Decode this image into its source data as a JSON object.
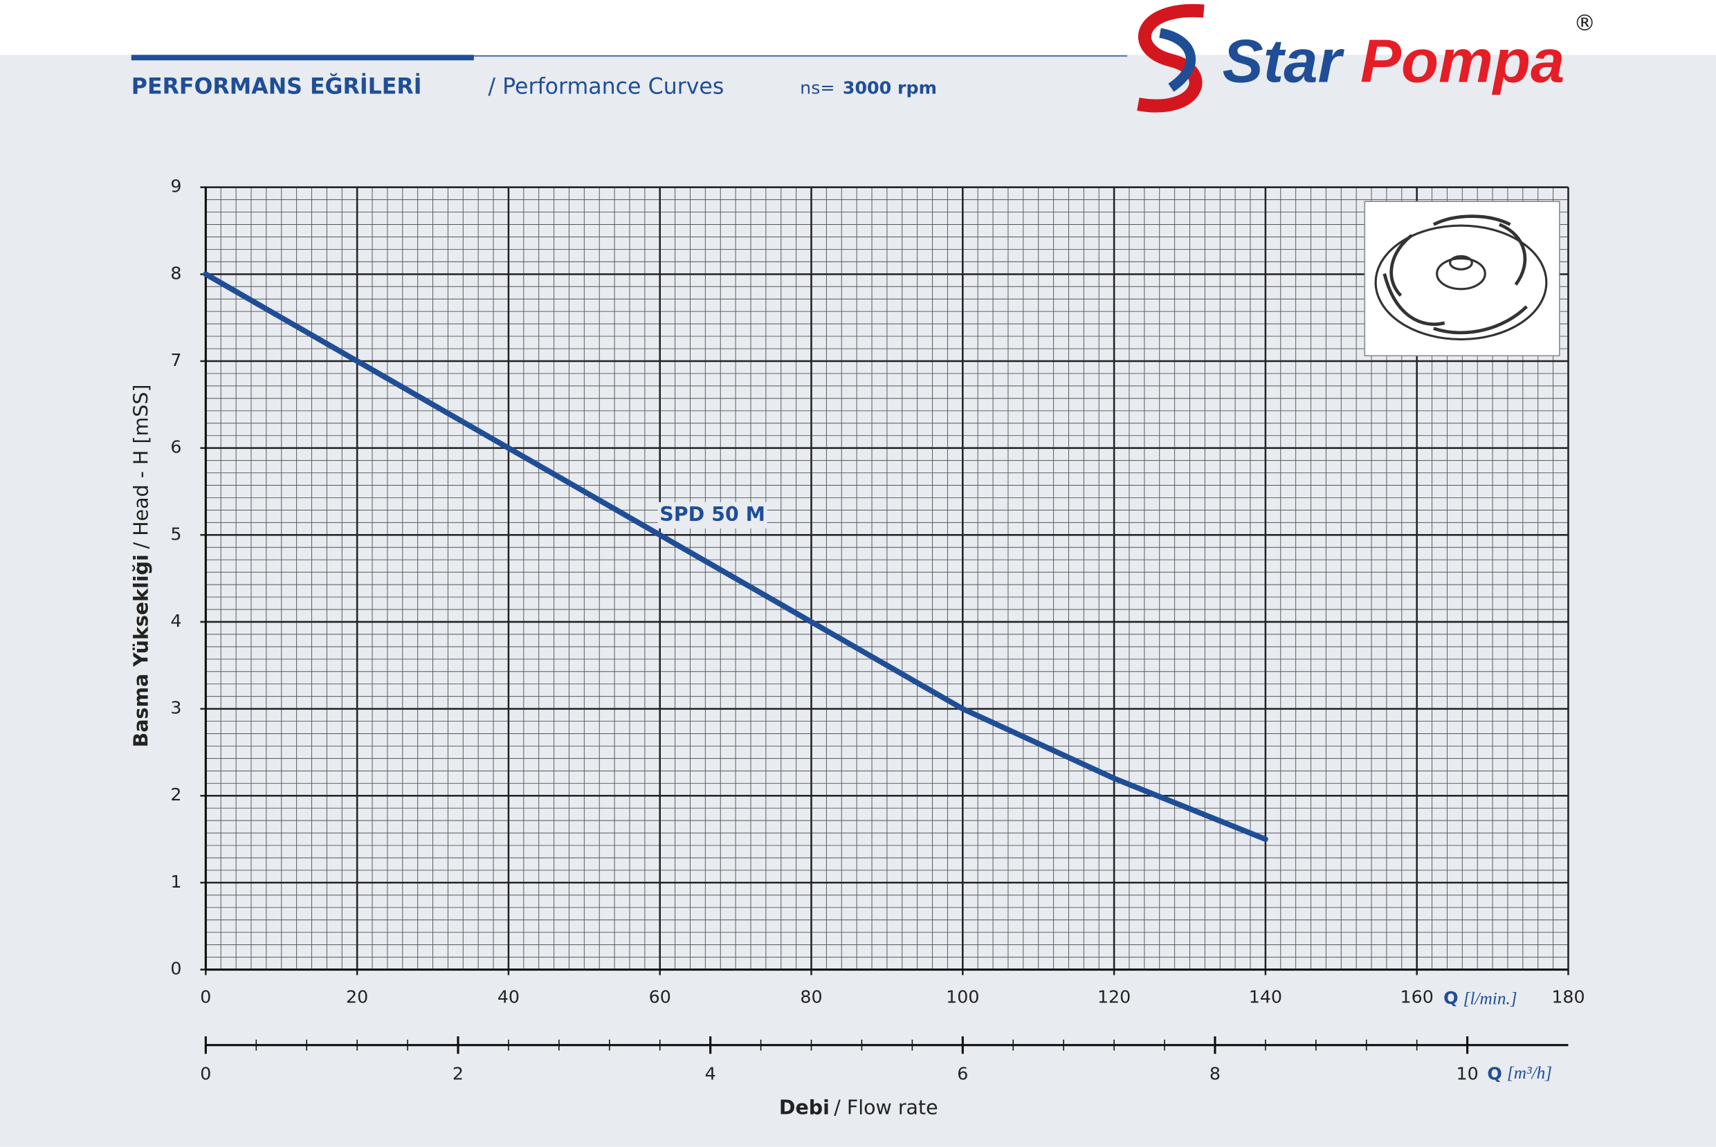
{
  "header": {
    "title": "PERFORMANS EĞRİLERİ",
    "subtitle": "/ Performance Curves",
    "speed_label": "ns=",
    "speed": "3000 rpm"
  },
  "brand": {
    "first": "Star",
    "second": "Pompa",
    "mark": "®"
  },
  "chart_data": {
    "type": "line",
    "x_label_bold": "Debi",
    "x_label": "/ Flow rate",
    "y_label_bold": "Basma Yüksekliği",
    "y_label": "/ Head - H [mSS]",
    "x_unit_symbol": "Q",
    "x_unit": "[l/min.]",
    "xlim": [
      0,
      180
    ],
    "xticks": [
      0,
      20,
      40,
      60,
      80,
      100,
      120,
      140,
      160,
      180
    ],
    "ylim": [
      0,
      9
    ],
    "yticks": [
      0,
      1,
      2,
      3,
      4,
      5,
      6,
      7,
      8,
      9
    ],
    "x2_unit_symbol": "Q",
    "x2_unit": "[m³/h]",
    "x2lim": [
      0,
      10.8
    ],
    "x2ticks": [
      0,
      2,
      4,
      6,
      8,
      10
    ],
    "grid": true,
    "series": [
      {
        "name": "SPD 50 M",
        "color": "#1f4e96",
        "x": [
          0,
          20,
          40,
          60,
          80,
          100,
          120,
          140
        ],
        "values": [
          8,
          7,
          6,
          5,
          4,
          3,
          2.2,
          1.5
        ]
      }
    ]
  }
}
